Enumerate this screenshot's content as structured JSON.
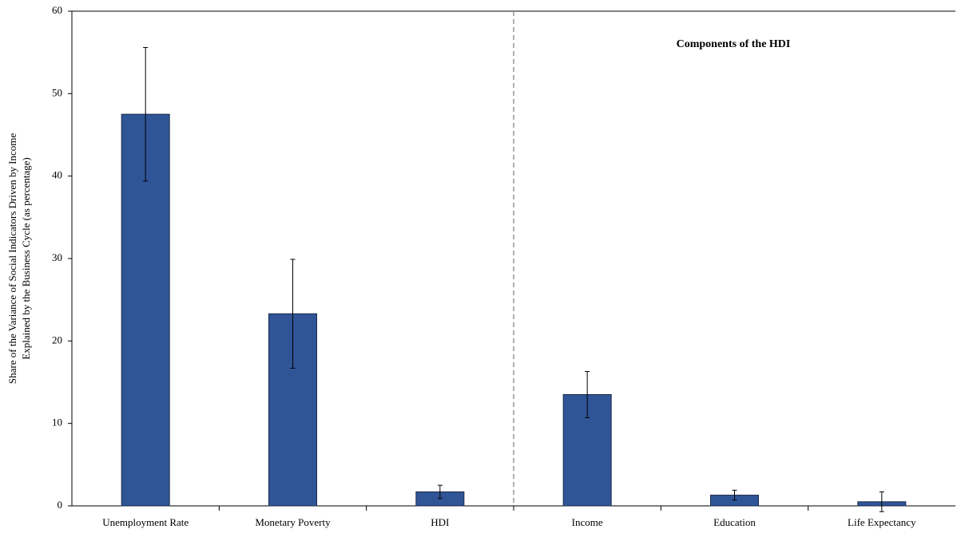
{
  "chart_data": {
    "type": "bar",
    "ylabel": [
      "Share of the Variance of Social Indicators Driven by Income",
      "Explained by the Business Cycle (as percentage)"
    ],
    "annotation": "Components of the HDI",
    "categories": [
      "Unemployment Rate",
      "Monetary Poverty",
      "HDI",
      "Income",
      "Education",
      "Life Expectancy"
    ],
    "values": [
      47.5,
      23.3,
      1.7,
      13.5,
      1.3,
      0.5
    ],
    "errors": [
      8.1,
      6.6,
      0.8,
      2.8,
      0.6,
      1.2
    ],
    "color": "#2f5597",
    "ylim": [
      0,
      60
    ],
    "yticks": [
      0,
      10,
      20,
      30,
      40,
      50,
      60
    ]
  }
}
